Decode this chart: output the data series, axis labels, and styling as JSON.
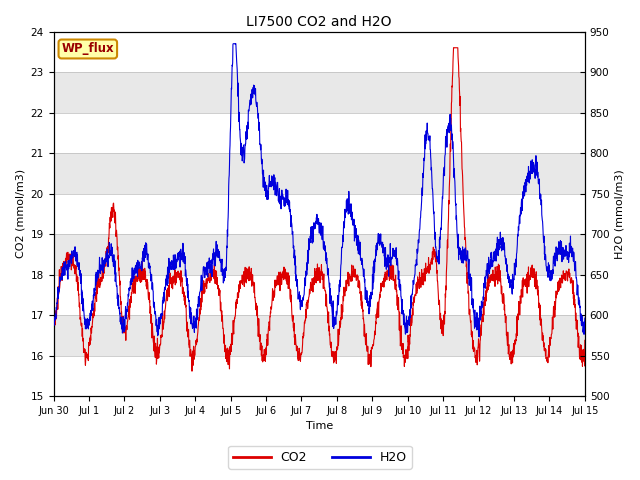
{
  "title": "LI7500 CO2 and H2O",
  "ylabel_left": "CO2 (mmol/m3)",
  "ylabel_right": "H2O (mmol/m3)",
  "xlabel": "Time",
  "ylim_left": [
    15.0,
    24.0
  ],
  "ylim_right": [
    500,
    950
  ],
  "yticks_left": [
    15.0,
    16.0,
    17.0,
    18.0,
    19.0,
    20.0,
    21.0,
    22.0,
    23.0,
    24.0
  ],
  "yticks_right": [
    500,
    550,
    600,
    650,
    700,
    750,
    800,
    850,
    900,
    950
  ],
  "co2_color": "#dd0000",
  "h2o_color": "#0000dd",
  "annotation_text": "WP_flux",
  "annotation_bg": "#ffffaa",
  "annotation_border": "#cc8800",
  "annotation_fg": "#990000",
  "bg_color": "#ffffff",
  "band_color_odd": "#e8e8e8",
  "band_color_even": "#ffffff",
  "title_fontsize": 10,
  "axis_fontsize": 8,
  "tick_fontsize": 7.5,
  "legend_fontsize": 9,
  "seed": 12345
}
